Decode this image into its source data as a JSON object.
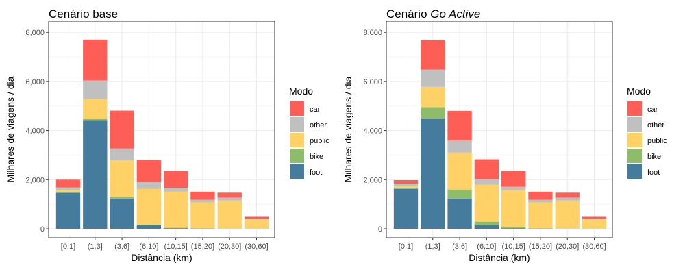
{
  "legend": {
    "title": "Modo",
    "order": [
      "car",
      "other",
      "public",
      "bike",
      "foot"
    ]
  },
  "colors": {
    "foot": "#457b9d",
    "bike": "#8fbc6a",
    "public": "#ffd166",
    "other": "#c0c0c0",
    "car": "#ff5e57"
  },
  "chart_data": [
    {
      "type": "bar",
      "stacked": true,
      "title_parts": [
        {
          "text": "Cenário base",
          "italic": false
        }
      ],
      "xlabel": "Distância (km)",
      "ylabel": "Milhares de viagens / dia",
      "ylim": [
        0,
        8200
      ],
      "yticks": [
        0,
        2000,
        4000,
        6000,
        8000
      ],
      "ytick_labels": [
        "0",
        "2,000",
        "4,000",
        "6,000",
        "8,000"
      ],
      "categories": [
        "[0,1]",
        "(1,3]",
        "(3,6]",
        "(6,10]",
        "(10,15]",
        "(15,20]",
        "(20,30]",
        "(30,60]"
      ],
      "grid": true,
      "legend_position": "right",
      "series": [
        {
          "name": "foot",
          "values": [
            1460,
            4420,
            1230,
            150,
            20,
            0,
            0,
            0
          ]
        },
        {
          "name": "bike",
          "values": [
            40,
            60,
            60,
            20,
            20,
            20,
            0,
            0
          ]
        },
        {
          "name": "public",
          "values": [
            70,
            810,
            1490,
            1450,
            1480,
            1050,
            1150,
            380
          ]
        },
        {
          "name": "other",
          "values": [
            110,
            750,
            490,
            280,
            150,
            110,
            120,
            30
          ]
        },
        {
          "name": "car",
          "values": [
            320,
            1660,
            1540,
            900,
            680,
            330,
            200,
            80
          ]
        }
      ]
    },
    {
      "type": "bar",
      "stacked": true,
      "title_parts": [
        {
          "text": "Cenário ",
          "italic": false
        },
        {
          "text": "Go Active",
          "italic": true
        }
      ],
      "xlabel": "Distância (km)",
      "ylabel": "Milhares de viagens / dia",
      "ylim": [
        0,
        8200
      ],
      "yticks": [
        0,
        2000,
        4000,
        6000,
        8000
      ],
      "ytick_labels": [
        "0",
        "2,000",
        "4,000",
        "6,000",
        "8,000"
      ],
      "categories": [
        "[0,1]",
        "(1,3]",
        "(3,6]",
        "(6,10]",
        "(10,15]",
        "(15,20]",
        "(20,30]",
        "(30,60]"
      ],
      "grid": true,
      "legend_position": "right",
      "series": [
        {
          "name": "foot",
          "values": [
            1620,
            4500,
            1230,
            150,
            20,
            0,
            0,
            0
          ]
        },
        {
          "name": "bike",
          "values": [
            50,
            450,
            370,
            140,
            40,
            20,
            0,
            0
          ]
        },
        {
          "name": "public",
          "values": [
            60,
            830,
            1500,
            1500,
            1500,
            1050,
            1150,
            380
          ]
        },
        {
          "name": "other",
          "values": [
            110,
            700,
            500,
            230,
            150,
            110,
            120,
            30
          ]
        },
        {
          "name": "car",
          "values": [
            140,
            1200,
            1200,
            810,
            650,
            330,
            200,
            80
          ]
        }
      ]
    }
  ]
}
